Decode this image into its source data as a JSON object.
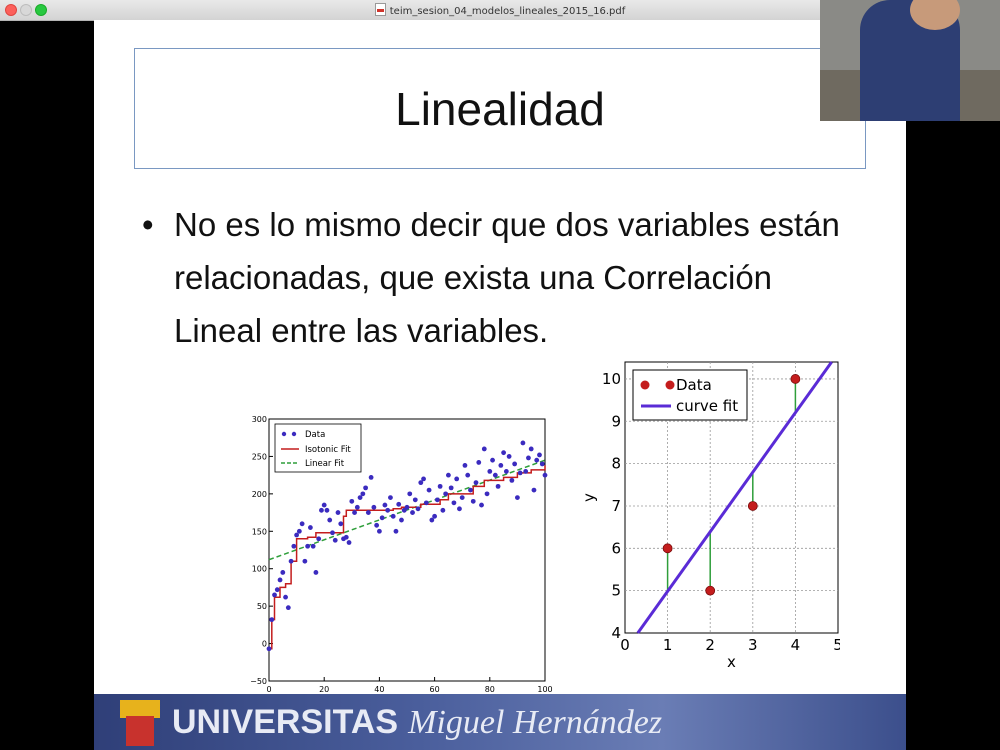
{
  "window": {
    "file_name": "teim_sesion_04_modelos_lineales_2015_16.pdf",
    "icon": "pdf-file-icon"
  },
  "slide": {
    "title": "Linealidad",
    "bullet": "No es lo mismo decir que dos variables están relacionadas, que exista una Correlación Lineal entre las variables."
  },
  "banner": {
    "universitas": "UNIVERSITAS",
    "miguel": "Miguel Hernández",
    "logo": "umh-logo"
  },
  "chart_data": [
    {
      "type": "scatter",
      "xlim": [
        0,
        100
      ],
      "ylim": [
        -50,
        300
      ],
      "x_ticks": [
        "0",
        "20",
        "40",
        "60",
        "80",
        "100"
      ],
      "y_ticks": [
        "−50",
        "0",
        "50",
        "100",
        "150",
        "200",
        "250",
        "300"
      ],
      "legend": [
        "Data",
        "Isotonic Fit",
        "Linear Fit"
      ],
      "legend_position": "top-left",
      "colors": {
        "data": "#3b2bbf",
        "isotonic": "#c41d1d",
        "linear": "#2e9e3a"
      },
      "data": [
        [
          0,
          -7
        ],
        [
          1,
          32
        ],
        [
          2,
          65
        ],
        [
          3,
          72
        ],
        [
          4,
          85
        ],
        [
          5,
          95
        ],
        [
          6,
          62
        ],
        [
          7,
          48
        ],
        [
          8,
          110
        ],
        [
          9,
          130
        ],
        [
          10,
          145
        ],
        [
          11,
          150
        ],
        [
          12,
          160
        ],
        [
          13,
          110
        ],
        [
          14,
          130
        ],
        [
          15,
          155
        ],
        [
          16,
          130
        ],
        [
          17,
          95
        ],
        [
          18,
          140
        ],
        [
          19,
          178
        ],
        [
          20,
          185
        ],
        [
          21,
          178
        ],
        [
          22,
          165
        ],
        [
          23,
          148
        ],
        [
          24,
          138
        ],
        [
          25,
          175
        ],
        [
          26,
          160
        ],
        [
          27,
          140
        ],
        [
          28,
          142
        ],
        [
          29,
          135
        ],
        [
          30,
          190
        ],
        [
          31,
          175
        ],
        [
          32,
          182
        ],
        [
          33,
          195
        ],
        [
          34,
          200
        ],
        [
          35,
          208
        ],
        [
          36,
          175
        ],
        [
          37,
          222
        ],
        [
          38,
          182
        ],
        [
          39,
          158
        ],
        [
          40,
          150
        ],
        [
          41,
          168
        ],
        [
          42,
          185
        ],
        [
          43,
          178
        ],
        [
          44,
          195
        ],
        [
          45,
          170
        ],
        [
          46,
          150
        ],
        [
          47,
          186
        ],
        [
          48,
          165
        ],
        [
          49,
          178
        ],
        [
          50,
          182
        ],
        [
          51,
          200
        ],
        [
          52,
          175
        ],
        [
          53,
          192
        ],
        [
          54,
          180
        ],
        [
          55,
          215
        ],
        [
          56,
          220
        ],
        [
          57,
          188
        ],
        [
          58,
          205
        ],
        [
          59,
          165
        ],
        [
          60,
          170
        ],
        [
          61,
          192
        ],
        [
          62,
          210
        ],
        [
          63,
          178
        ],
        [
          64,
          200
        ],
        [
          65,
          225
        ],
        [
          66,
          208
        ],
        [
          67,
          188
        ],
        [
          68,
          220
        ],
        [
          69,
          180
        ],
        [
          70,
          195
        ],
        [
          71,
          238
        ],
        [
          72,
          225
        ],
        [
          73,
          205
        ],
        [
          74,
          190
        ],
        [
          75,
          215
        ],
        [
          76,
          242
        ],
        [
          77,
          185
        ],
        [
          78,
          260
        ],
        [
          79,
          200
        ],
        [
          80,
          230
        ],
        [
          81,
          245
        ],
        [
          82,
          225
        ],
        [
          83,
          210
        ],
        [
          84,
          238
        ],
        [
          85,
          255
        ],
        [
          86,
          230
        ],
        [
          87,
          250
        ],
        [
          88,
          218
        ],
        [
          89,
          240
        ],
        [
          90,
          195
        ],
        [
          91,
          228
        ],
        [
          92,
          268
        ],
        [
          93,
          230
        ],
        [
          94,
          248
        ],
        [
          95,
          260
        ],
        [
          96,
          205
        ],
        [
          97,
          245
        ],
        [
          98,
          252
        ],
        [
          99,
          240
        ],
        [
          100,
          225
        ]
      ],
      "isotonic_fit": [
        [
          0,
          -7
        ],
        [
          1,
          32
        ],
        [
          2,
          62
        ],
        [
          4,
          75
        ],
        [
          6,
          80
        ],
        [
          8,
          110
        ],
        [
          10,
          140
        ],
        [
          14,
          142
        ],
        [
          17,
          148
        ],
        [
          27,
          170
        ],
        [
          28,
          178
        ],
        [
          45,
          180
        ],
        [
          48,
          182
        ],
        [
          55,
          186
        ],
        [
          62,
          192
        ],
        [
          65,
          200
        ],
        [
          74,
          210
        ],
        [
          78,
          218
        ],
        [
          85,
          222
        ],
        [
          90,
          228
        ],
        [
          95,
          232
        ],
        [
          100,
          238
        ]
      ],
      "linear_fit": [
        [
          0,
          112
        ],
        [
          100,
          245
        ]
      ]
    },
    {
      "type": "scatter",
      "xlabel": "x",
      "ylabel": "y",
      "xlim": [
        0,
        5
      ],
      "ylim": [
        4,
        10.4
      ],
      "x_ticks": [
        "0",
        "1",
        "2",
        "3",
        "4",
        "5"
      ],
      "y_ticks": [
        "4",
        "5",
        "6",
        "7",
        "8",
        "9",
        "10"
      ],
      "grid": true,
      "legend": [
        "Data",
        "curve fit"
      ],
      "legend_position": "top-left",
      "colors": {
        "data": "#c41d1d",
        "curve": "#5a2bd6",
        "residual": "#2e9e3a"
      },
      "data": [
        [
          1,
          6
        ],
        [
          2,
          5
        ],
        [
          3,
          7
        ],
        [
          4,
          10
        ]
      ],
      "curve_fit": [
        [
          0.3,
          4
        ],
        [
          4.85,
          10.4
        ]
      ]
    }
  ]
}
